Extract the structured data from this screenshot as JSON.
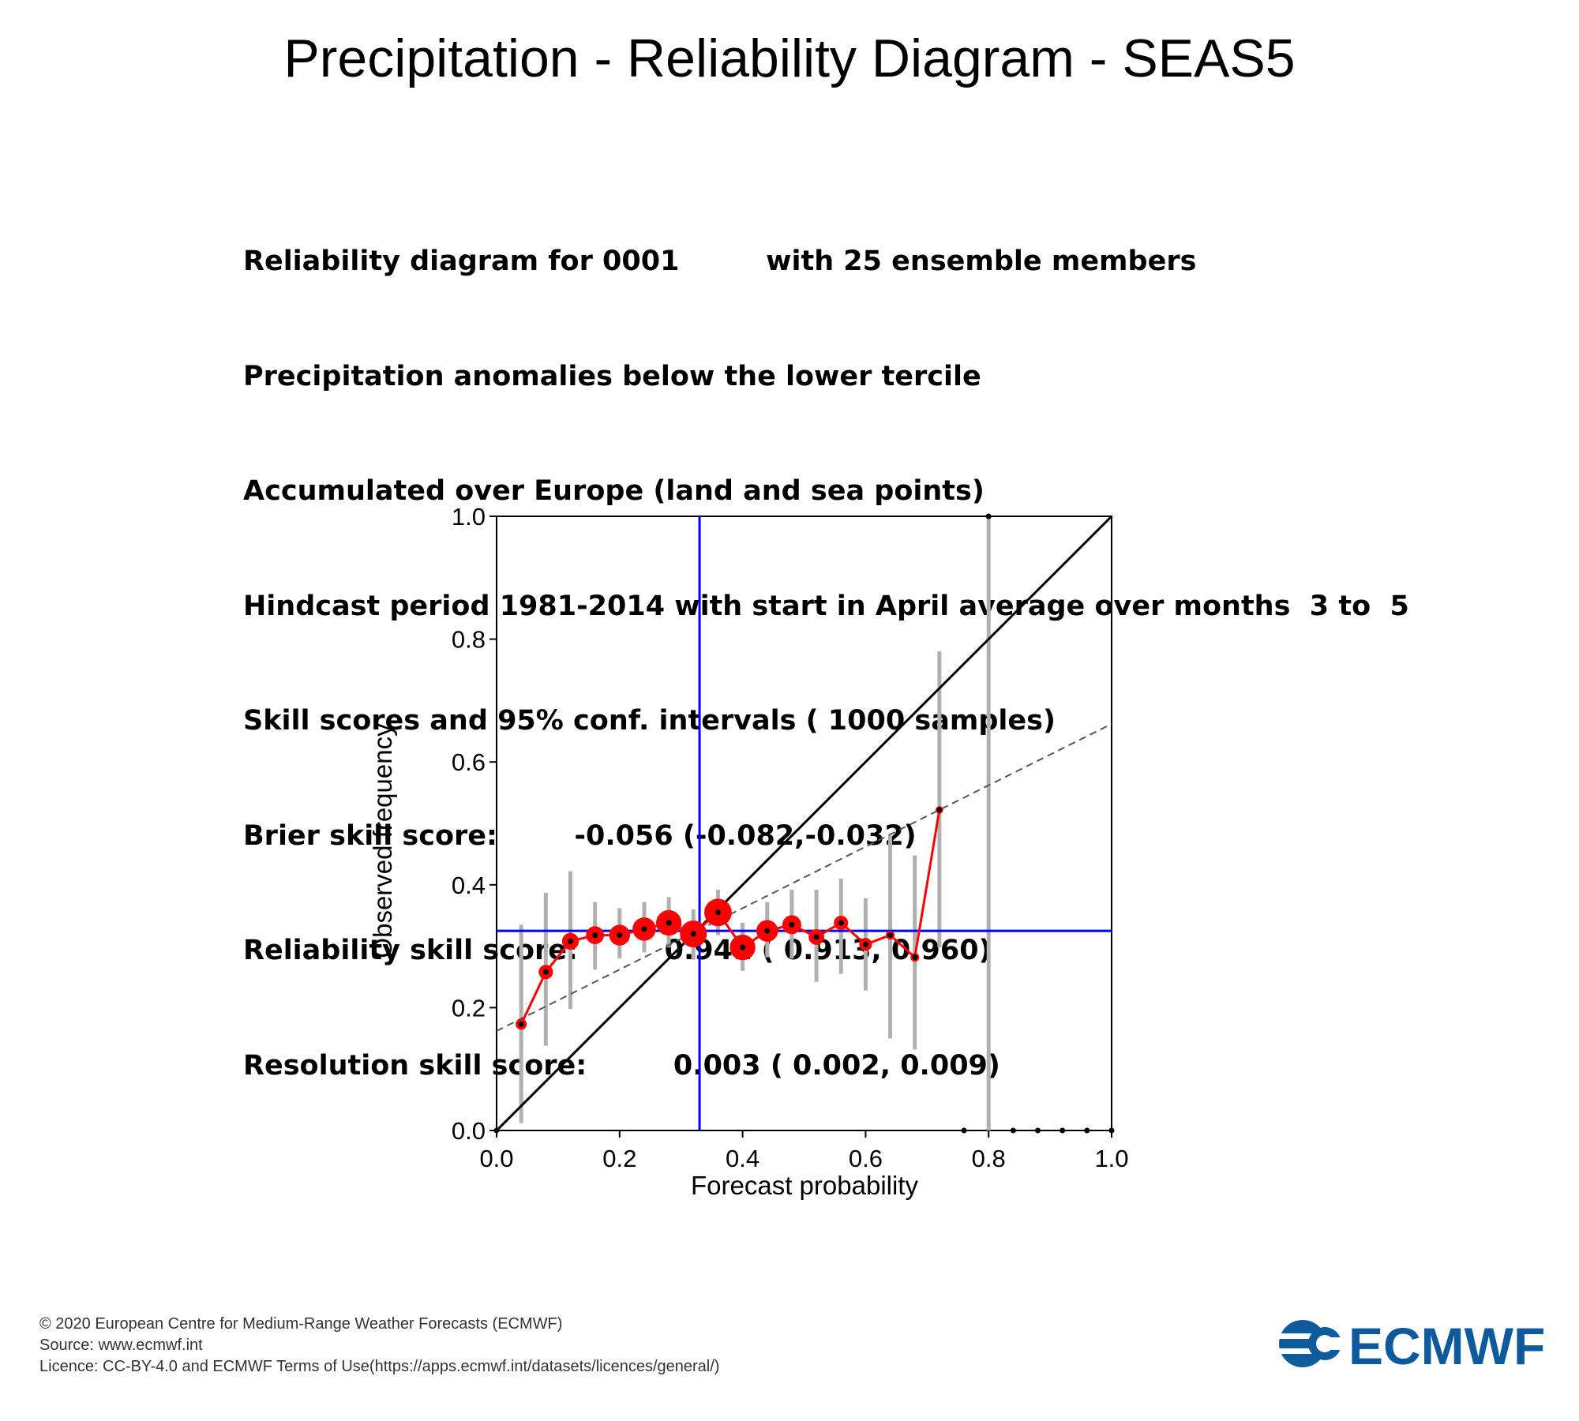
{
  "title": "Precipitation - Reliability Diagram - SEAS5",
  "info_lines": [
    "Reliability diagram for 0001         with 25 ensemble members",
    "Precipitation anomalies below the lower tercile",
    "Accumulated over Europe (land and sea points)",
    "Hindcast period 1981-2014 with start in April average over months  3 to  5",
    "Skill scores and 95% conf. intervals ( 1000 samples)",
    "Brier skill score:        -0.056 (-0.082,-0.032)",
    "Reliability skill score:         0.941 ( 0.913, 0.960)",
    "Resolution skill score:         0.003 ( 0.002, 0.009)"
  ],
  "chart_data": {
    "type": "scatter",
    "xlabel": "Forecast probability",
    "ylabel": "Observed frequency",
    "xlim": [
      0.0,
      1.0
    ],
    "ylim": [
      0.0,
      1.0
    ],
    "xticks": [
      "0.0",
      "0.2",
      "0.4",
      "0.6",
      "0.8",
      "1.0"
    ],
    "yticks": [
      "0.0",
      "0.2",
      "0.4",
      "0.6",
      "0.8",
      "1.0"
    ],
    "climatology": 0.325,
    "climatology_forecast_x": 0.33,
    "regression_line": {
      "intercept": 0.162,
      "slope": 0.5
    },
    "points": [
      {
        "x": 0.04,
        "y": 0.173,
        "lo": 0.012,
        "hi": 0.335,
        "weight": 1
      },
      {
        "x": 0.08,
        "y": 0.258,
        "lo": 0.138,
        "hi": 0.387,
        "weight": 2
      },
      {
        "x": 0.12,
        "y": 0.308,
        "lo": 0.198,
        "hi": 0.422,
        "weight": 3
      },
      {
        "x": 0.16,
        "y": 0.318,
        "lo": 0.262,
        "hi": 0.372,
        "weight": 3.5
      },
      {
        "x": 0.2,
        "y": 0.318,
        "lo": 0.28,
        "hi": 0.362,
        "weight": 5
      },
      {
        "x": 0.24,
        "y": 0.328,
        "lo": 0.29,
        "hi": 0.372,
        "weight": 6.5
      },
      {
        "x": 0.28,
        "y": 0.338,
        "lo": 0.298,
        "hi": 0.38,
        "weight": 8
      },
      {
        "x": 0.32,
        "y": 0.32,
        "lo": 0.278,
        "hi": 0.36,
        "weight": 9
      },
      {
        "x": 0.36,
        "y": 0.355,
        "lo": 0.318,
        "hi": 0.392,
        "weight": 9.5
      },
      {
        "x": 0.4,
        "y": 0.298,
        "lo": 0.26,
        "hi": 0.338,
        "weight": 8
      },
      {
        "x": 0.44,
        "y": 0.325,
        "lo": 0.282,
        "hi": 0.372,
        "weight": 5.5
      },
      {
        "x": 0.48,
        "y": 0.335,
        "lo": 0.28,
        "hi": 0.392,
        "weight": 4
      },
      {
        "x": 0.52,
        "y": 0.315,
        "lo": 0.242,
        "hi": 0.392,
        "weight": 2.5
      },
      {
        "x": 0.56,
        "y": 0.338,
        "lo": 0.255,
        "hi": 0.41,
        "weight": 2
      },
      {
        "x": 0.6,
        "y": 0.303,
        "lo": 0.228,
        "hi": 0.378,
        "weight": 1.5
      },
      {
        "x": 0.64,
        "y": 0.318,
        "lo": 0.15,
        "hi": 0.48,
        "weight": 0.5
      },
      {
        "x": 0.68,
        "y": 0.282,
        "lo": 0.132,
        "hi": 0.448,
        "weight": 0.5
      },
      {
        "x": 0.72,
        "y": 0.522,
        "lo": 0.298,
        "hi": 0.78,
        "weight": 0.3
      },
      {
        "x": 0.8,
        "y": 1.0,
        "lo": 0.0,
        "hi": 1.0,
        "weight": 0
      }
    ],
    "zero_points_x": [
      0.76,
      0.84,
      0.88,
      0.92,
      0.96,
      1.0
    ],
    "colors": {
      "diagonal": "#000000",
      "climatology": "#0000ff",
      "reliability_curve": "#ff0000",
      "bubbles": "#ff0000",
      "error_bars": "#b0b0b0",
      "regression": "#555555"
    }
  },
  "footer": {
    "copyright": "© 2020 European Centre for Medium-Range Weather Forecasts (ECMWF)",
    "source": "Source: www.ecmwf.int",
    "licence": "Licence: CC-BY-4.0 and ECMWF Terms of Use(https://apps.ecmwf.int/datasets/licences/general/)"
  },
  "logo": {
    "text": "ECMWF",
    "color": "#0d5b9c"
  }
}
